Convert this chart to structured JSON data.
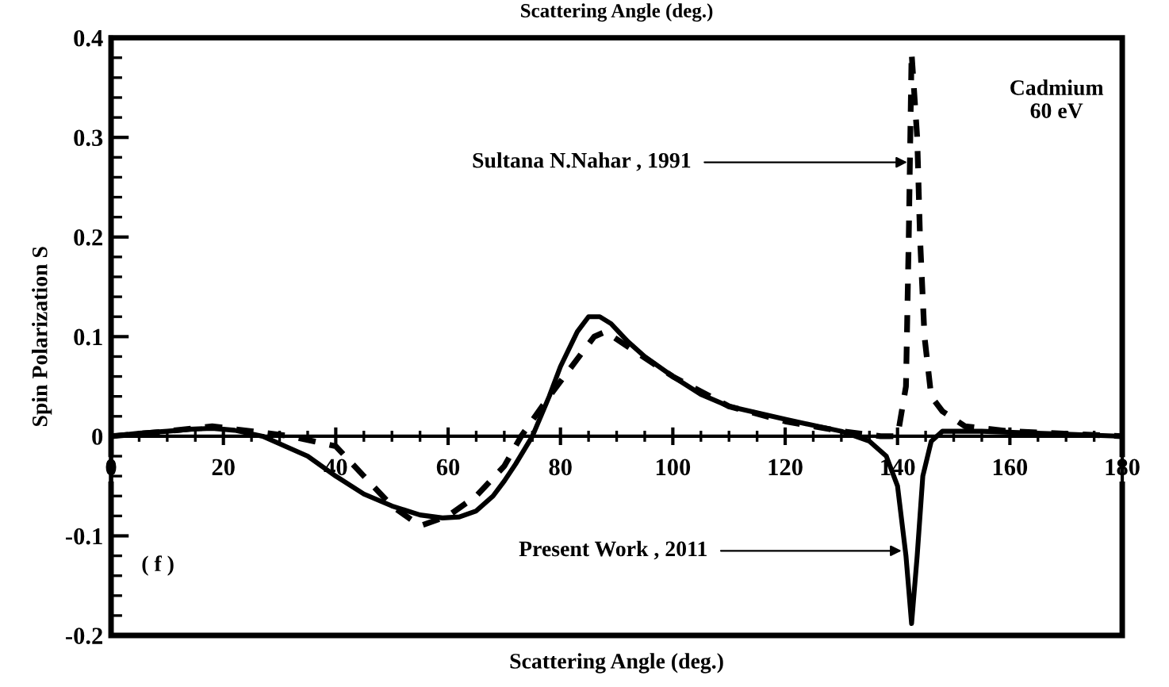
{
  "chart_data": {
    "type": "line",
    "xlabel": "Scattering Angle (deg.)",
    "x2label": "Scattering Angle (deg.)",
    "ylabel": "Spin Polarization S",
    "xlim": [
      0,
      180
    ],
    "xticks": [
      0,
      20,
      40,
      60,
      80,
      100,
      120,
      140,
      160,
      180
    ],
    "ylim": [
      -0.2,
      0.4
    ],
    "yticks": [
      -0.2,
      -0.1,
      0,
      0.1,
      0.2,
      0.3,
      0.4
    ],
    "grid": false,
    "legend": false,
    "series": [
      {
        "color": "#000000",
        "line_style": "solid",
        "x": [
          0,
          5,
          10,
          14,
          18,
          22,
          27,
          31,
          35,
          40,
          45,
          50,
          55,
          59,
          62,
          65,
          68,
          70,
          72,
          75,
          78,
          80,
          83,
          85,
          87,
          89,
          92,
          95,
          100,
          105,
          110,
          120,
          130,
          135,
          138,
          140,
          141.5,
          142.5,
          143.5,
          144.5,
          146,
          148,
          155,
          170,
          180
        ],
        "values": [
          0,
          0.003,
          0.005,
          0.007,
          0.008,
          0.006,
          0,
          -0.01,
          -0.02,
          -0.04,
          -0.058,
          -0.07,
          -0.079,
          -0.082,
          -0.081,
          -0.075,
          -0.06,
          -0.045,
          -0.028,
          0,
          0.04,
          0.07,
          0.105,
          0.12,
          0.12,
          0.113,
          0.095,
          0.08,
          0.06,
          0.042,
          0.03,
          0.017,
          0.005,
          -0.005,
          -0.02,
          -0.05,
          -0.12,
          -0.188,
          -0.12,
          -0.04,
          -0.005,
          0.005,
          0.005,
          0.002,
          0
        ]
      },
      {
        "color": "#000000",
        "line_style": "dashed",
        "x": [
          0,
          10,
          18,
          25,
          32,
          40,
          45,
          50,
          55,
          60,
          65,
          70,
          73,
          78,
          82,
          86,
          88,
          92,
          100,
          110,
          120,
          130,
          137,
          140,
          141.5,
          142,
          142.5,
          143.5,
          144,
          144.8,
          146,
          148,
          152,
          160,
          180
        ],
        "values": [
          0,
          0.005,
          0.01,
          0.005,
          0,
          -0.01,
          -0.04,
          -0.07,
          -0.09,
          -0.08,
          -0.06,
          -0.03,
          0,
          0.04,
          0.07,
          0.1,
          0.105,
          0.09,
          0.06,
          0.03,
          0.015,
          0.005,
          0,
          0,
          0.05,
          0.2,
          0.385,
          0.3,
          0.2,
          0.1,
          0.04,
          0.025,
          0.01,
          0.005,
          0
        ]
      }
    ],
    "annotations": [
      {
        "text": "Sultana N.Nahar , 1991",
        "x": 142.5,
        "y": 0.275
      },
      {
        "text": "Present Work , 2011",
        "x": 141.5,
        "y": -0.115
      },
      "Cadmium\n60 eV",
      "( f )"
    ]
  }
}
